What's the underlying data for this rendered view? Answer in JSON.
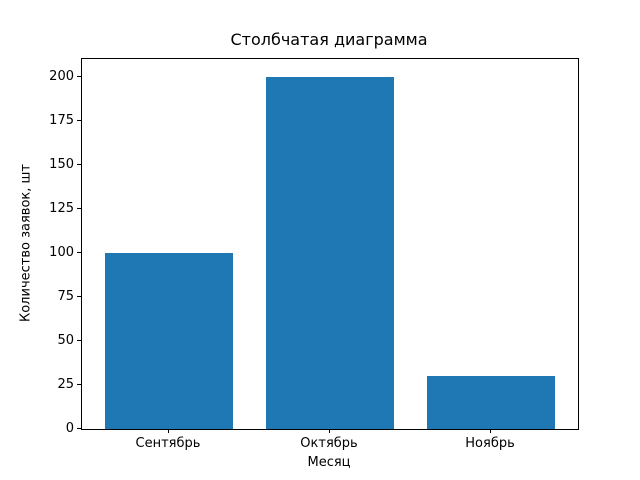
{
  "chart_data": {
    "type": "bar",
    "title": "Столбчатая диаграмма",
    "xlabel": "Месяц",
    "ylabel": "Количество заявок, шт",
    "categories": [
      "Сентябрь",
      "Октябрь",
      "Ноябрь"
    ],
    "values": [
      100,
      200,
      30
    ],
    "yticks": [
      0,
      25,
      50,
      75,
      100,
      125,
      150,
      175,
      200
    ],
    "ylim": [
      0,
      210
    ],
    "xlim": [
      -0.54,
      2.54
    ],
    "bar_width_fraction": 0.8,
    "bar_color": "#1f77b4",
    "axis_color": "#000000",
    "background_color": "#ffffff",
    "grid": false,
    "legend": null
  }
}
